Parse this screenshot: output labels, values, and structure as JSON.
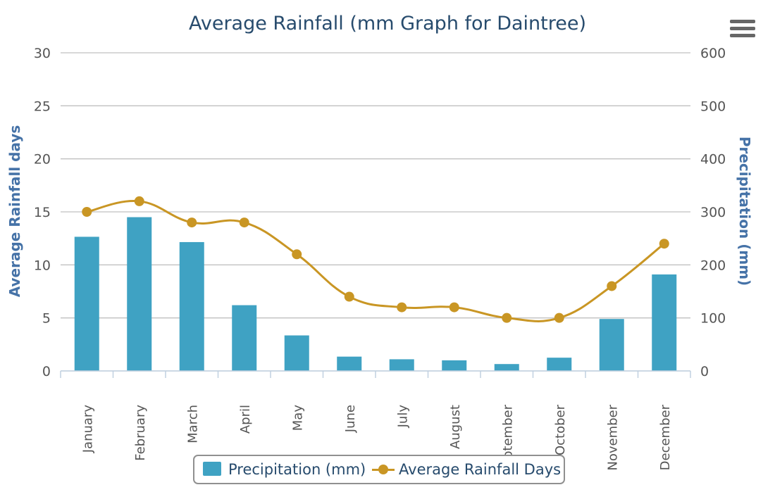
{
  "title": "Average Rainfall (mm Graph for Daintree)",
  "menu_icon": "hamburger-menu-icon",
  "colors": {
    "precipitation": "#3fa2c3",
    "rainfall_days": "#c99624",
    "axis_title": "#4572a7",
    "title": "#274b6d"
  },
  "legend": {
    "precipitation_label": "Precipitation (mm)",
    "days_label": "Average Rainfall Days",
    "placement": "bottom-center"
  },
  "chart_data": {
    "type": "bar",
    "title": "Average Rainfall (mm Graph for Daintree)",
    "categories": [
      "January",
      "February",
      "March",
      "April",
      "May",
      "June",
      "July",
      "August",
      "September",
      "October",
      "November",
      "December"
    ],
    "grid": true,
    "y_left": {
      "label": "Average Rainfall days",
      "range": [
        0,
        30
      ],
      "ticks": [
        "0",
        "5",
        "10",
        "15",
        "20",
        "25",
        "30"
      ]
    },
    "y_right": {
      "label": "Precipitation (mm)",
      "range": [
        0,
        600
      ],
      "ticks": [
        "0",
        "100",
        "200",
        "300",
        "400",
        "500",
        "600"
      ]
    },
    "series": [
      {
        "name": "Precipitation (mm)",
        "type": "bar",
        "axis": "right",
        "values": [
          253,
          290,
          243,
          124,
          67,
          27,
          22,
          20,
          13,
          25,
          98,
          182
        ]
      },
      {
        "name": "Average Rainfall Days",
        "type": "line",
        "axis": "left",
        "values": [
          15,
          16,
          14,
          14,
          11,
          7,
          6,
          6,
          5,
          5,
          8,
          12
        ]
      }
    ]
  }
}
